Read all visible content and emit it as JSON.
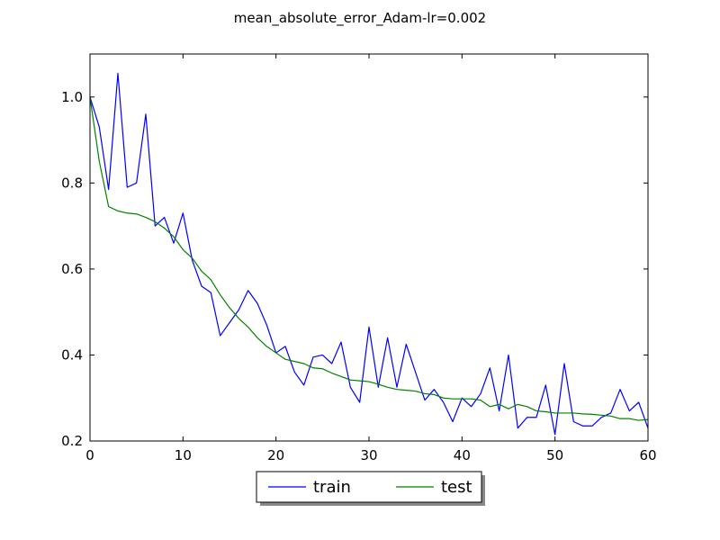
{
  "chart_data": {
    "type": "line",
    "title": "mean_absolute_error_Adam-lr=0.002",
    "xlabel": "",
    "ylabel": "",
    "xlim": [
      0,
      60
    ],
    "ylim": [
      0.2,
      1.1
    ],
    "xticks": [
      0,
      10,
      20,
      30,
      40,
      50,
      60
    ],
    "yticks": [
      0.2,
      0.4,
      0.6,
      0.8,
      1.0
    ],
    "xtick_labels": [
      "0",
      "10",
      "20",
      "30",
      "40",
      "50",
      "60"
    ],
    "ytick_labels": [
      "0.2",
      "0.4",
      "0.6",
      "0.8",
      "1.0"
    ],
    "grid": false,
    "legend_placement": "bottom-center",
    "x": [
      0,
      1,
      2,
      3,
      4,
      5,
      6,
      7,
      8,
      9,
      10,
      11,
      12,
      13,
      14,
      15,
      16,
      17,
      18,
      19,
      20,
      21,
      22,
      23,
      24,
      25,
      26,
      27,
      28,
      29,
      30,
      31,
      32,
      33,
      34,
      35,
      36,
      37,
      38,
      39,
      40,
      41,
      42,
      43,
      44,
      45,
      46,
      47,
      48,
      49,
      50,
      51,
      52,
      53,
      54,
      55,
      56,
      57,
      58,
      59,
      60
    ],
    "series": [
      {
        "name": "train",
        "color": "#0000ff",
        "values": [
          1.0,
          0.93,
          0.785,
          1.055,
          0.79,
          0.8,
          0.96,
          0.7,
          0.72,
          0.66,
          0.73,
          0.62,
          0.56,
          0.545,
          0.445,
          0.475,
          0.505,
          0.55,
          0.52,
          0.47,
          0.405,
          0.42,
          0.36,
          0.33,
          0.395,
          0.4,
          0.38,
          0.43,
          0.325,
          0.29,
          0.465,
          0.325,
          0.44,
          0.325,
          0.425,
          0.36,
          0.295,
          0.32,
          0.29,
          0.245,
          0.3,
          0.28,
          0.31,
          0.37,
          0.27,
          0.4,
          0.23,
          0.255,
          0.255,
          0.33,
          0.215,
          0.38,
          0.245,
          0.235,
          0.235,
          0.255,
          0.265,
          0.32,
          0.27,
          0.29,
          0.23
        ]
      },
      {
        "name": "test",
        "color": "#008000",
        "values": [
          1.0,
          0.85,
          0.745,
          0.735,
          0.73,
          0.728,
          0.72,
          0.71,
          0.695,
          0.675,
          0.645,
          0.625,
          0.595,
          0.575,
          0.54,
          0.51,
          0.485,
          0.465,
          0.44,
          0.42,
          0.405,
          0.39,
          0.385,
          0.38,
          0.37,
          0.368,
          0.358,
          0.35,
          0.342,
          0.34,
          0.338,
          0.332,
          0.325,
          0.32,
          0.318,
          0.316,
          0.31,
          0.308,
          0.3,
          0.298,
          0.298,
          0.298,
          0.295,
          0.28,
          0.285,
          0.275,
          0.285,
          0.28,
          0.27,
          0.268,
          0.265,
          0.265,
          0.265,
          0.263,
          0.262,
          0.26,
          0.258,
          0.252,
          0.252,
          0.248,
          0.25
        ]
      }
    ]
  }
}
